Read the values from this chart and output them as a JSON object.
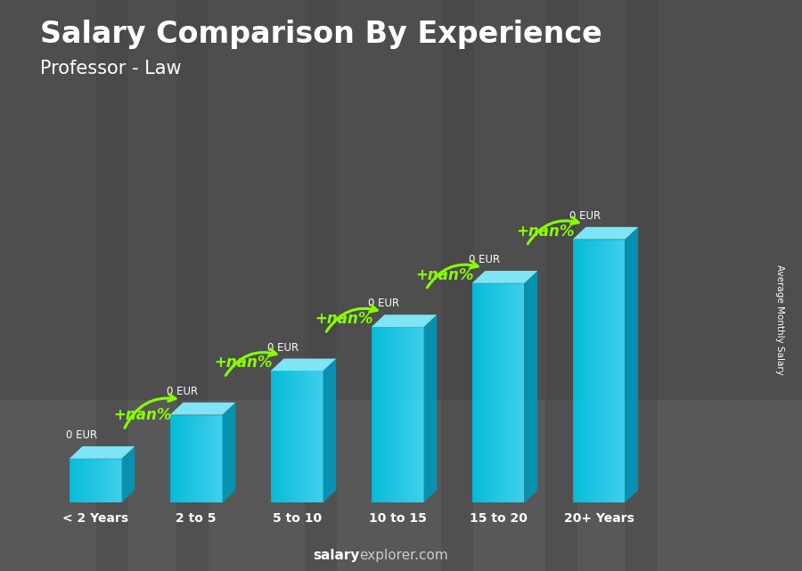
{
  "title": "Salary Comparison By Experience",
  "subtitle": "Professor - Law",
  "categories": [
    "< 2 Years",
    "2 to 5",
    "5 to 10",
    "10 to 15",
    "15 to 20",
    "20+ Years"
  ],
  "bar_heights": [
    1,
    2,
    3,
    4,
    5,
    6
  ],
  "value_labels": [
    "0 EUR",
    "0 EUR",
    "0 EUR",
    "0 EUR",
    "0 EUR",
    "0 EUR"
  ],
  "pct_labels": [
    "+nan%",
    "+nan%",
    "+nan%",
    "+nan%",
    "+nan%"
  ],
  "ylabel": "Average Monthly Salary",
  "footer_bold": "salary",
  "footer_regular": "explorer.com",
  "ylim": [
    0,
    8.2
  ],
  "bar_color_front": "#00c8e8",
  "bar_color_light": "#40dfff",
  "bar_color_side": "#0099bb",
  "bar_color_top": "#80eeff",
  "arrow_color": "#88ff00",
  "title_fontsize": 24,
  "subtitle_fontsize": 15,
  "xlabel_fontsize": 11,
  "flag_green": "#2a8a2a",
  "flag_yellow": "#f5cc00",
  "flag_star": "#cc0000"
}
